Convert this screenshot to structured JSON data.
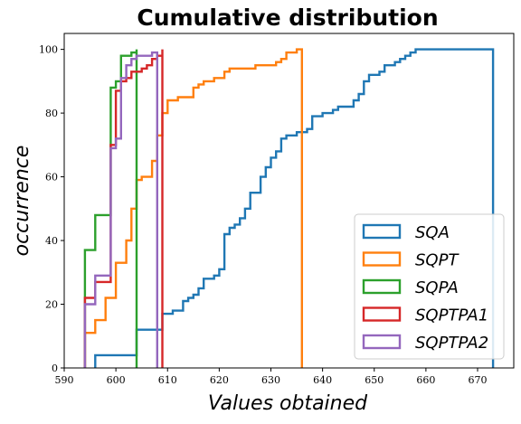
{
  "chart_data": {
    "type": "line",
    "drawstyle": "steps",
    "title": "Cumulative distribution",
    "xlabel": "Values obtained",
    "ylabel": "occurrence",
    "xlim": [
      590,
      677
    ],
    "ylim": [
      0,
      105
    ],
    "xticks": [
      590,
      600,
      610,
      620,
      630,
      640,
      650,
      660,
      670
    ],
    "yticks": [
      0,
      20,
      40,
      60,
      80,
      100
    ],
    "grid": false,
    "legend_position": "lower-right",
    "series": [
      {
        "name": "SQA",
        "color": "#1f77b4",
        "points": [
          [
            596,
            0
          ],
          [
            596,
            4
          ],
          [
            604,
            4
          ],
          [
            604,
            12
          ],
          [
            609,
            12
          ],
          [
            609,
            17
          ],
          [
            611,
            17
          ],
          [
            611,
            18
          ],
          [
            613,
            18
          ],
          [
            613,
            21
          ],
          [
            614,
            21
          ],
          [
            614,
            22
          ],
          [
            615,
            22
          ],
          [
            615,
            23
          ],
          [
            616,
            23
          ],
          [
            616,
            25
          ],
          [
            617,
            25
          ],
          [
            617,
            28
          ],
          [
            619,
            28
          ],
          [
            619,
            29
          ],
          [
            620,
            29
          ],
          [
            620,
            31
          ],
          [
            621,
            31
          ],
          [
            621,
            42
          ],
          [
            622,
            42
          ],
          [
            622,
            44
          ],
          [
            623,
            44
          ],
          [
            623,
            45
          ],
          [
            624,
            45
          ],
          [
            624,
            47
          ],
          [
            625,
            47
          ],
          [
            625,
            50
          ],
          [
            626,
            50
          ],
          [
            626,
            55
          ],
          [
            628,
            55
          ],
          [
            628,
            60
          ],
          [
            629,
            60
          ],
          [
            629,
            63
          ],
          [
            630,
            63
          ],
          [
            630,
            66
          ],
          [
            631,
            66
          ],
          [
            631,
            68
          ],
          [
            632,
            68
          ],
          [
            632,
            72
          ],
          [
            633,
            72
          ],
          [
            633,
            73
          ],
          [
            635,
            73
          ],
          [
            635,
            74
          ],
          [
            637,
            74
          ],
          [
            637,
            75
          ],
          [
            638,
            75
          ],
          [
            638,
            79
          ],
          [
            640,
            79
          ],
          [
            640,
            80
          ],
          [
            642,
            80
          ],
          [
            642,
            81
          ],
          [
            643,
            81
          ],
          [
            643,
            82
          ],
          [
            646,
            82
          ],
          [
            646,
            84
          ],
          [
            647,
            84
          ],
          [
            647,
            86
          ],
          [
            648,
            86
          ],
          [
            648,
            90
          ],
          [
            649,
            90
          ],
          [
            649,
            92
          ],
          [
            651,
            92
          ],
          [
            651,
            93
          ],
          [
            652,
            93
          ],
          [
            652,
            95
          ],
          [
            654,
            95
          ],
          [
            654,
            96
          ],
          [
            655,
            96
          ],
          [
            655,
            97
          ],
          [
            656,
            97
          ],
          [
            656,
            98
          ],
          [
            657,
            98
          ],
          [
            657,
            99
          ],
          [
            658,
            99
          ],
          [
            658,
            100
          ],
          [
            673,
            100
          ],
          [
            673,
            0
          ]
        ]
      },
      {
        "name": "SQPT",
        "color": "#ff7f0e",
        "points": [
          [
            594,
            0
          ],
          [
            594,
            11
          ],
          [
            596,
            11
          ],
          [
            596,
            15
          ],
          [
            598,
            15
          ],
          [
            598,
            22
          ],
          [
            600,
            22
          ],
          [
            600,
            33
          ],
          [
            602,
            33
          ],
          [
            602,
            40
          ],
          [
            603,
            40
          ],
          [
            603,
            50
          ],
          [
            604,
            50
          ],
          [
            604,
            59
          ],
          [
            605,
            59
          ],
          [
            605,
            60
          ],
          [
            607,
            60
          ],
          [
            607,
            65
          ],
          [
            608,
            65
          ],
          [
            608,
            73
          ],
          [
            609,
            73
          ],
          [
            609,
            80
          ],
          [
            610,
            80
          ],
          [
            610,
            84
          ],
          [
            612,
            84
          ],
          [
            612,
            85
          ],
          [
            615,
            85
          ],
          [
            615,
            88
          ],
          [
            616,
            88
          ],
          [
            616,
            89
          ],
          [
            617,
            89
          ],
          [
            617,
            90
          ],
          [
            619,
            90
          ],
          [
            619,
            91
          ],
          [
            621,
            91
          ],
          [
            621,
            93
          ],
          [
            622,
            93
          ],
          [
            622,
            94
          ],
          [
            627,
            94
          ],
          [
            627,
            95
          ],
          [
            631,
            95
          ],
          [
            631,
            96
          ],
          [
            632,
            96
          ],
          [
            632,
            97
          ],
          [
            633,
            97
          ],
          [
            633,
            99
          ],
          [
            635,
            99
          ],
          [
            635,
            100
          ],
          [
            636,
            100
          ],
          [
            636,
            0
          ]
        ]
      },
      {
        "name": "SQPA",
        "color": "#2ca02c",
        "points": [
          [
            594,
            0
          ],
          [
            594,
            37
          ],
          [
            596,
            37
          ],
          [
            596,
            48
          ],
          [
            599,
            48
          ],
          [
            599,
            88
          ],
          [
            600,
            88
          ],
          [
            600,
            90
          ],
          [
            601,
            90
          ],
          [
            601,
            98
          ],
          [
            603,
            98
          ],
          [
            603,
            99
          ],
          [
            604,
            99
          ],
          [
            604,
            100
          ],
          [
            604,
            0
          ]
        ]
      },
      {
        "name": "SQPTPA1",
        "color": "#d62728",
        "points": [
          [
            594,
            0
          ],
          [
            594,
            22
          ],
          [
            596,
            22
          ],
          [
            596,
            27
          ],
          [
            599,
            27
          ],
          [
            599,
            70
          ],
          [
            600,
            70
          ],
          [
            600,
            87
          ],
          [
            601,
            87
          ],
          [
            601,
            90
          ],
          [
            602,
            90
          ],
          [
            602,
            91
          ],
          [
            603,
            91
          ],
          [
            603,
            93
          ],
          [
            605,
            93
          ],
          [
            605,
            94
          ],
          [
            606,
            94
          ],
          [
            606,
            95
          ],
          [
            607,
            95
          ],
          [
            607,
            97
          ],
          [
            608,
            97
          ],
          [
            608,
            98
          ],
          [
            609,
            98
          ],
          [
            609,
            100
          ],
          [
            609,
            0
          ]
        ]
      },
      {
        "name": "SQPTPA2",
        "color": "#9467bd",
        "points": [
          [
            594,
            0
          ],
          [
            594,
            20
          ],
          [
            596,
            20
          ],
          [
            596,
            29
          ],
          [
            599,
            29
          ],
          [
            599,
            69
          ],
          [
            600,
            69
          ],
          [
            600,
            72
          ],
          [
            601,
            72
          ],
          [
            601,
            91
          ],
          [
            602,
            91
          ],
          [
            602,
            95
          ],
          [
            603,
            95
          ],
          [
            603,
            97
          ],
          [
            604,
            97
          ],
          [
            604,
            98
          ],
          [
            607,
            98
          ],
          [
            607,
            99
          ],
          [
            608,
            99
          ],
          [
            608,
            0
          ]
        ]
      }
    ]
  }
}
